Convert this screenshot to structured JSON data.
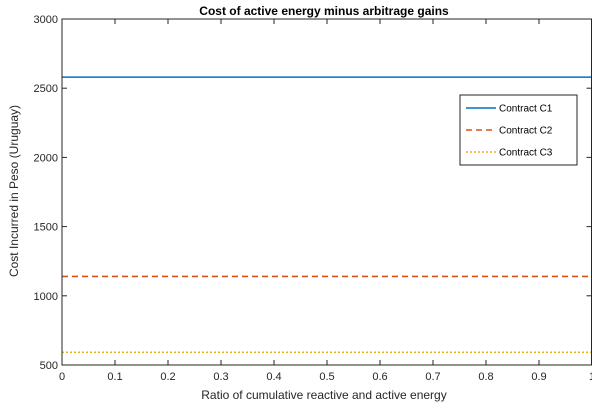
{
  "chart_data": {
    "type": "line",
    "title": "Cost of active energy minus arbitrage gains",
    "xlabel": "Ratio of cumulative reactive and active energy",
    "ylabel": "Cost Incurred in Peso (Uruguay)",
    "xlim": [
      0,
      1
    ],
    "ylim": [
      500,
      3000
    ],
    "x_ticks": [
      0,
      0.1,
      0.2,
      0.3,
      0.4,
      0.5,
      0.6,
      0.7,
      0.8,
      0.9,
      1
    ],
    "y_ticks": [
      500,
      1000,
      1500,
      2000,
      2500,
      3000
    ],
    "x_tick_labels": [
      "0",
      "0.1",
      "0.2",
      "0.3",
      "0.4",
      "0.5",
      "0.6",
      "0.7",
      "0.8",
      "0.9",
      "1"
    ],
    "y_tick_labels": [
      "500",
      "1000",
      "1500",
      "2000",
      "2500",
      "3000"
    ],
    "grid": false,
    "legend_position": "top-right",
    "series": [
      {
        "name": "Contract C1",
        "x": [
          0,
          1
        ],
        "y": [
          2580,
          2580
        ],
        "color": "#0072BD",
        "style": "solid"
      },
      {
        "name": "Contract C2",
        "x": [
          0,
          1
        ],
        "y": [
          1140,
          1140
        ],
        "color": "#D95319",
        "style": "dashed"
      },
      {
        "name": "Contract C3",
        "x": [
          0,
          1
        ],
        "y": [
          592,
          592
        ],
        "color": "#EDB120",
        "style": "dotted"
      }
    ]
  }
}
